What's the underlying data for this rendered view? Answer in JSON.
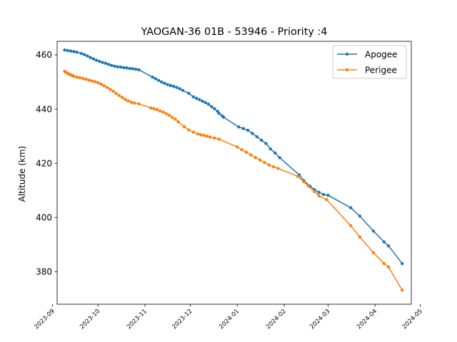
{
  "chart_data": {
    "type": "line",
    "title": "YAOGAN-36 01B - 53946 - Priority :4",
    "xlabel": "",
    "ylabel": "Altitude (km)",
    "x_axis_type": "date",
    "xlim": [
      "2023-09-04",
      "2024-04-25"
    ],
    "ylim": [
      368,
      465
    ],
    "x_ticks": [
      "2023-09",
      "2023-10",
      "2023-11",
      "2023-12",
      "2024-01",
      "2024-02",
      "2024-03",
      "2024-04",
      "2024-05"
    ],
    "y_ticks": [
      380,
      400,
      420,
      440,
      460
    ],
    "grid": false,
    "legend_position": "top-right",
    "series": [
      {
        "name": "Apogee",
        "color": "#1f77b4",
        "points": [
          [
            "2023-09-09",
            461.8
          ],
          [
            "2023-09-11",
            461.6
          ],
          [
            "2023-09-13",
            461.4
          ],
          [
            "2023-09-15",
            461.2
          ],
          [
            "2023-09-17",
            461.0
          ],
          [
            "2023-09-20",
            460.5
          ],
          [
            "2023-09-22",
            460.1
          ],
          [
            "2023-09-24",
            459.6
          ],
          [
            "2023-09-26",
            459.0
          ],
          [
            "2023-09-28",
            458.5
          ],
          [
            "2023-09-30",
            458.0
          ],
          [
            "2023-10-02",
            457.6
          ],
          [
            "2023-10-04",
            457.2
          ],
          [
            "2023-10-06",
            456.9
          ],
          [
            "2023-10-08",
            456.5
          ],
          [
            "2023-10-10",
            456.1
          ],
          [
            "2023-10-12",
            455.8
          ],
          [
            "2023-10-14",
            455.6
          ],
          [
            "2023-10-16",
            455.5
          ],
          [
            "2023-10-18",
            455.3
          ],
          [
            "2023-10-20",
            455.2
          ],
          [
            "2023-10-22",
            455.0
          ],
          [
            "2023-10-24",
            454.9
          ],
          [
            "2023-10-26",
            454.7
          ],
          [
            "2023-10-28",
            454.5
          ],
          [
            "2023-11-06",
            451.8
          ],
          [
            "2023-11-08",
            451.2
          ],
          [
            "2023-11-10",
            450.6
          ],
          [
            "2023-11-12",
            450.0
          ],
          [
            "2023-11-14",
            449.5
          ],
          [
            "2023-11-16",
            449.0
          ],
          [
            "2023-11-18",
            448.7
          ],
          [
            "2023-11-20",
            448.4
          ],
          [
            "2023-11-22",
            448.0
          ],
          [
            "2023-11-24",
            447.5
          ],
          [
            "2023-11-26",
            446.9
          ],
          [
            "2023-11-30",
            445.8
          ],
          [
            "2023-12-03",
            444.5
          ],
          [
            "2023-12-05",
            444.0
          ],
          [
            "2023-12-07",
            443.5
          ],
          [
            "2023-12-09",
            442.9
          ],
          [
            "2023-12-11",
            442.4
          ],
          [
            "2023-12-13",
            441.8
          ],
          [
            "2023-12-15",
            440.9
          ],
          [
            "2023-12-17",
            440.1
          ],
          [
            "2023-12-19",
            439.2
          ],
          [
            "2023-12-20",
            438.4
          ],
          [
            "2023-12-22",
            437.5
          ],
          [
            "2023-12-23",
            437.0
          ],
          [
            "2024-01-02",
            433.4
          ],
          [
            "2024-01-05",
            432.8
          ],
          [
            "2024-01-08",
            432.2
          ],
          [
            "2024-01-11",
            431.0
          ],
          [
            "2024-01-14",
            429.8
          ],
          [
            "2024-01-17",
            428.5
          ],
          [
            "2024-01-20",
            427.3
          ],
          [
            "2024-01-23",
            425.3
          ],
          [
            "2024-01-26",
            423.8
          ],
          [
            "2024-01-29",
            422.1
          ],
          [
            "2024-02-11",
            415.7
          ],
          [
            "2024-02-14",
            413.6
          ],
          [
            "2024-02-18",
            411.6
          ],
          [
            "2024-02-21",
            410.3
          ],
          [
            "2024-02-24",
            409.3
          ],
          [
            "2024-02-27",
            408.5
          ],
          [
            "2024-03-01",
            408.2
          ],
          [
            "2024-03-16",
            403.6
          ],
          [
            "2024-03-22",
            400.5
          ],
          [
            "2024-03-31",
            395.0
          ],
          [
            "2024-04-07",
            391.0
          ],
          [
            "2024-04-10",
            389.5
          ],
          [
            "2024-04-19",
            383.0
          ]
        ]
      },
      {
        "name": "Perigee",
        "color": "#ff7f0e",
        "points": [
          [
            "2023-09-09",
            453.9
          ],
          [
            "2023-09-10",
            453.5
          ],
          [
            "2023-09-11",
            453.2
          ],
          [
            "2023-09-12",
            452.9
          ],
          [
            "2023-09-13",
            452.6
          ],
          [
            "2023-09-14",
            452.4
          ],
          [
            "2023-09-15",
            452.1
          ],
          [
            "2023-09-17",
            451.8
          ],
          [
            "2023-09-19",
            451.6
          ],
          [
            "2023-09-21",
            451.3
          ],
          [
            "2023-09-23",
            451.0
          ],
          [
            "2023-09-25",
            450.7
          ],
          [
            "2023-09-27",
            450.4
          ],
          [
            "2023-09-29",
            450.1
          ],
          [
            "2023-10-01",
            449.7
          ],
          [
            "2023-10-03",
            449.2
          ],
          [
            "2023-10-05",
            448.6
          ],
          [
            "2023-10-07",
            448.0
          ],
          [
            "2023-10-09",
            447.3
          ],
          [
            "2023-10-11",
            446.6
          ],
          [
            "2023-10-13",
            445.8
          ],
          [
            "2023-10-15",
            445.0
          ],
          [
            "2023-10-17",
            444.3
          ],
          [
            "2023-10-19",
            443.6
          ],
          [
            "2023-10-21",
            443.0
          ],
          [
            "2023-10-23",
            442.5
          ],
          [
            "2023-10-25",
            442.2
          ],
          [
            "2023-10-28",
            441.9
          ],
          [
            "2023-11-05",
            440.4
          ],
          [
            "2023-11-07",
            440.1
          ],
          [
            "2023-11-09",
            439.8
          ],
          [
            "2023-11-11",
            439.3
          ],
          [
            "2023-11-13",
            438.9
          ],
          [
            "2023-11-15",
            438.3
          ],
          [
            "2023-11-17",
            437.7
          ],
          [
            "2023-11-19",
            437.0
          ],
          [
            "2023-11-21",
            436.3
          ],
          [
            "2023-11-23",
            435.3
          ],
          [
            "2023-11-27",
            433.5
          ],
          [
            "2023-11-30",
            432.3
          ],
          [
            "2023-12-03",
            431.5
          ],
          [
            "2023-12-06",
            430.8
          ],
          [
            "2023-12-08",
            430.5
          ],
          [
            "2023-12-10",
            430.3
          ],
          [
            "2023-12-12",
            430.0
          ],
          [
            "2023-12-14",
            429.7
          ],
          [
            "2023-12-17",
            429.3
          ],
          [
            "2023-12-20",
            428.9
          ],
          [
            "2024-01-01",
            426.0
          ],
          [
            "2024-01-04",
            425.0
          ],
          [
            "2024-01-07",
            424.1
          ],
          [
            "2024-01-10",
            423.1
          ],
          [
            "2024-01-13",
            422.1
          ],
          [
            "2024-01-16",
            421.2
          ],
          [
            "2024-01-19",
            420.3
          ],
          [
            "2024-01-22",
            419.4
          ],
          [
            "2024-01-25",
            418.7
          ],
          [
            "2024-01-28",
            418.1
          ],
          [
            "2024-02-10",
            415.2
          ],
          [
            "2024-02-14",
            413.2
          ],
          [
            "2024-02-17",
            411.6
          ],
          [
            "2024-02-21",
            409.6
          ],
          [
            "2024-02-24",
            408.0
          ],
          [
            "2024-02-29",
            406.6
          ],
          [
            "2024-03-16",
            397.0
          ],
          [
            "2024-03-22",
            392.8
          ],
          [
            "2024-03-31",
            387.0
          ],
          [
            "2024-04-07",
            383.0
          ],
          [
            "2024-04-10",
            381.7
          ],
          [
            "2024-04-19",
            373.2
          ]
        ]
      }
    ]
  }
}
